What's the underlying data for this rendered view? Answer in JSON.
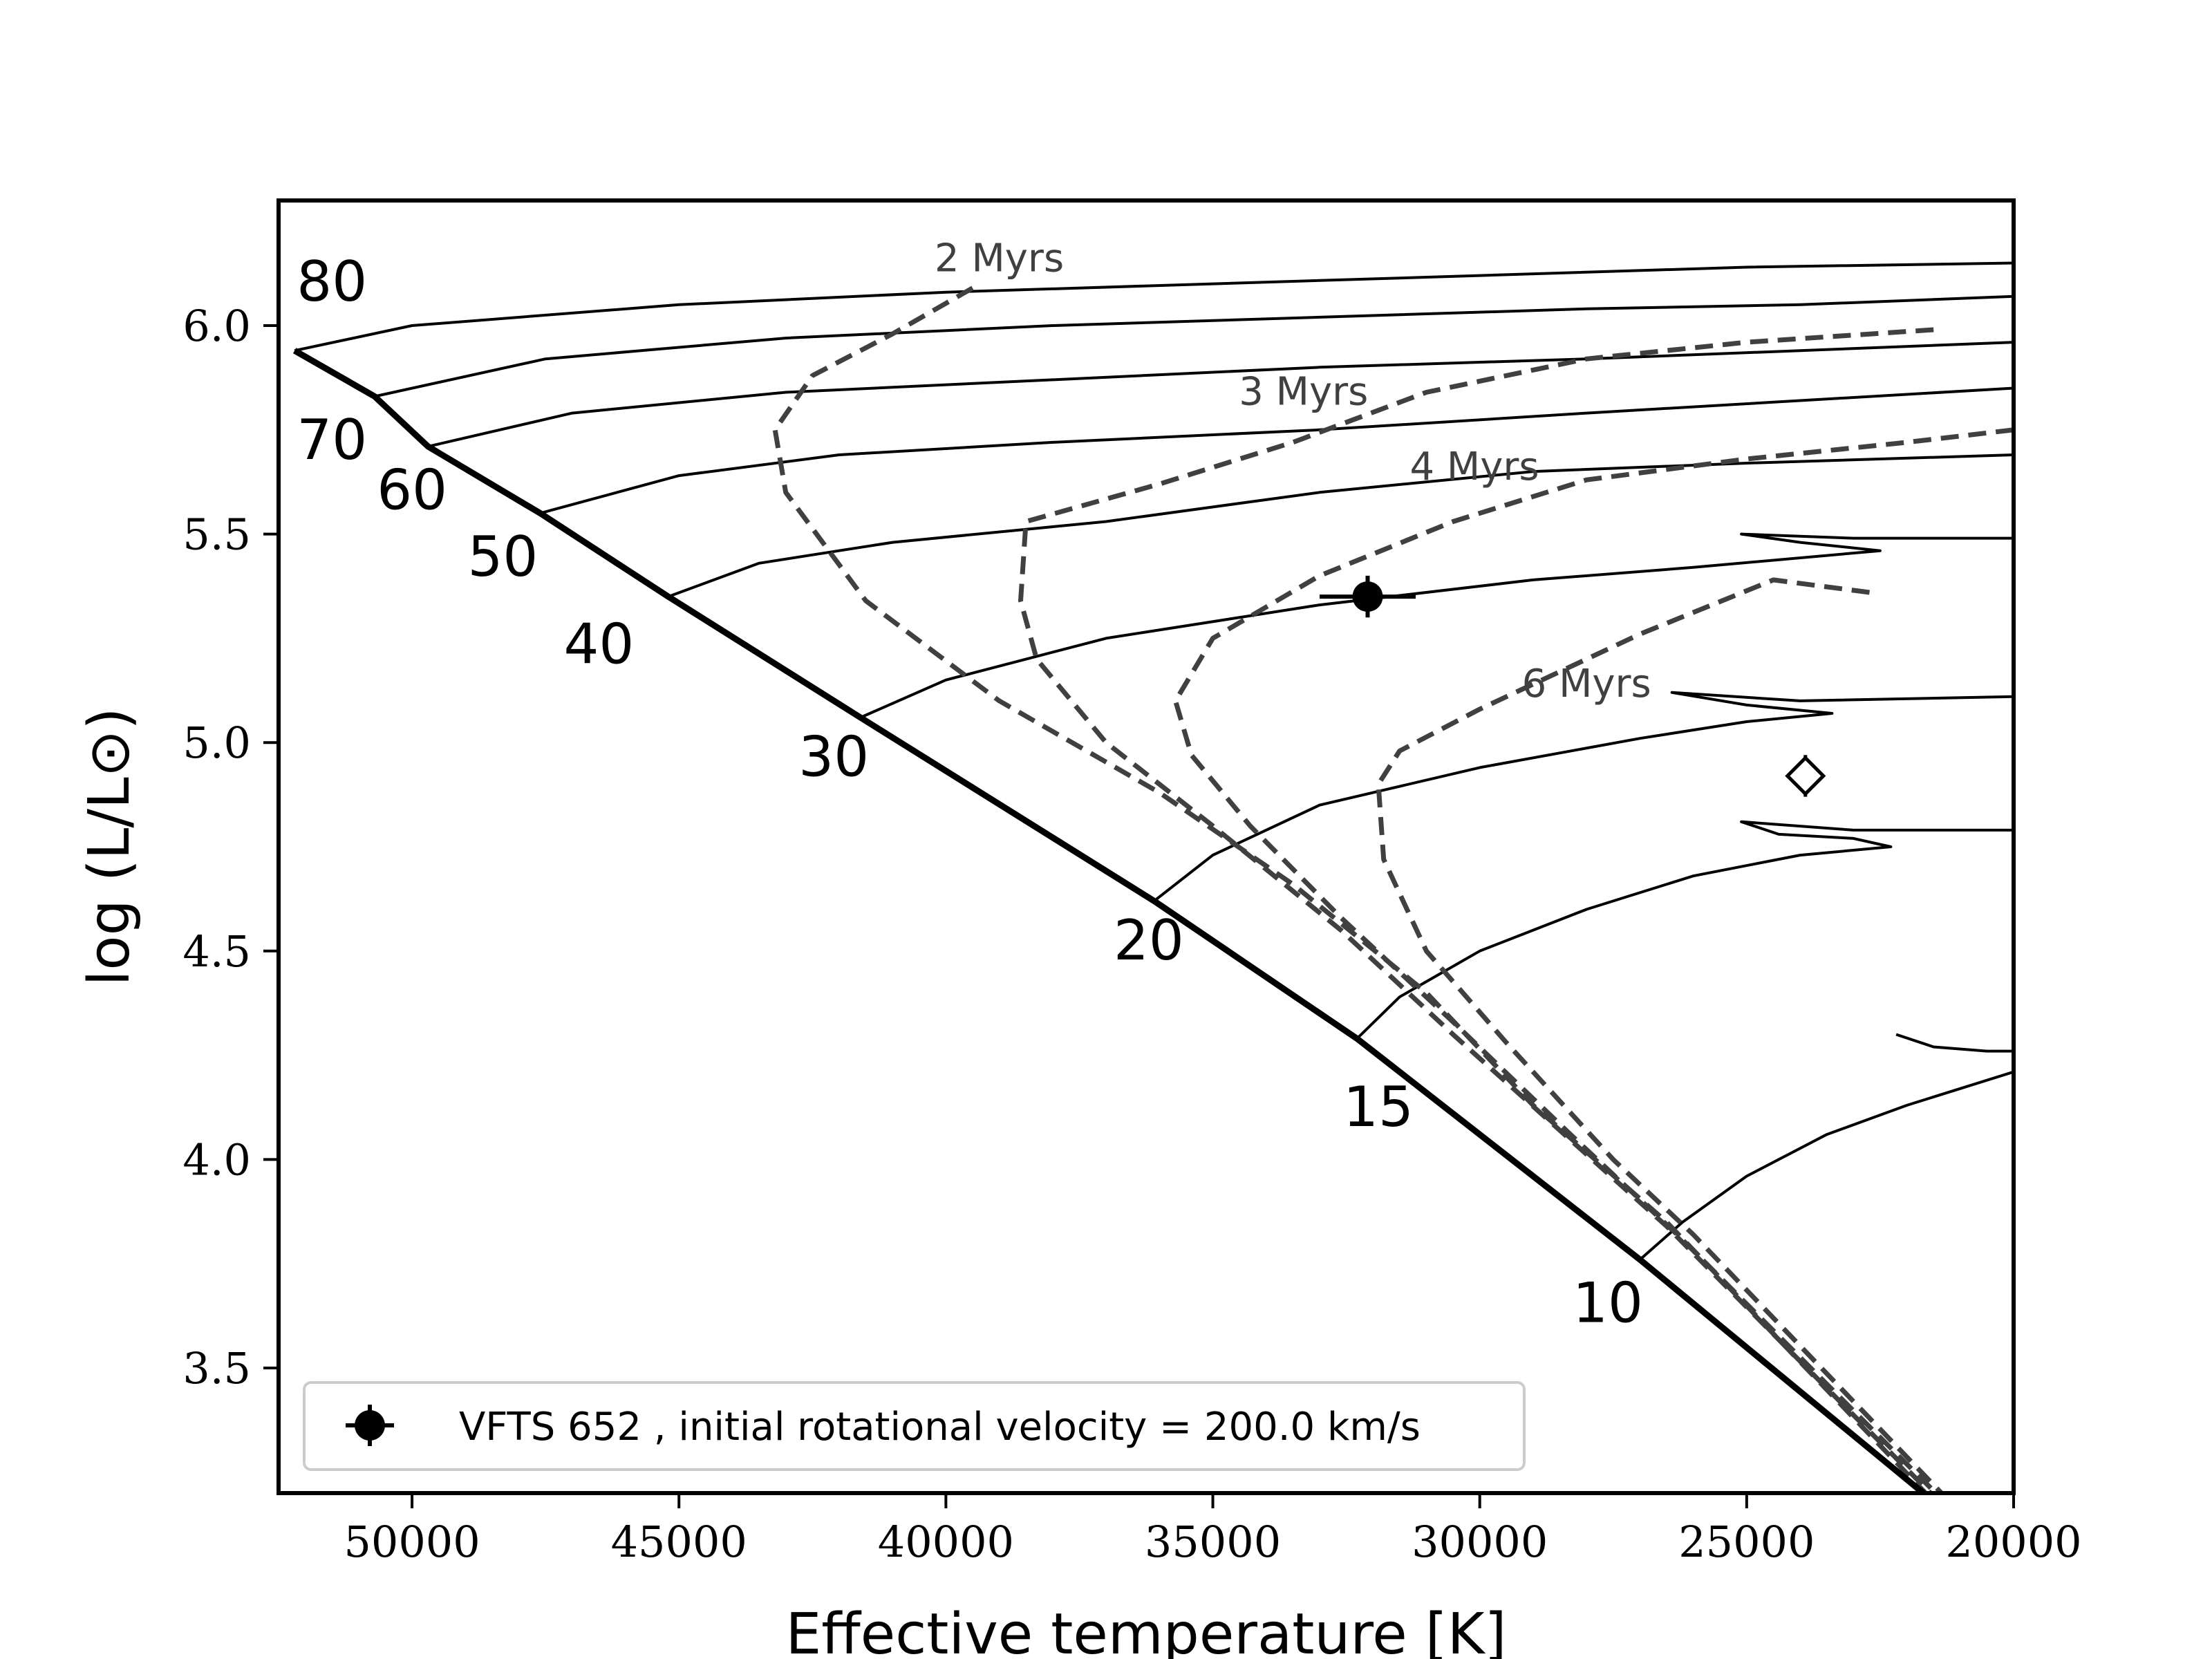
{
  "chart_data": {
    "type": "line",
    "title": "",
    "xlabel": "Effective temperature [K]",
    "ylabel": "log (L/L⊙)",
    "xlim": [
      52500,
      20000
    ],
    "ylim": [
      3.2,
      6.3
    ],
    "x_ticks": [
      {
        "value": 50000,
        "label": "50000"
      },
      {
        "value": 45000,
        "label": "45000"
      },
      {
        "value": 40000,
        "label": "40000"
      },
      {
        "value": 35000,
        "label": "35000"
      },
      {
        "value": 30000,
        "label": "30000"
      },
      {
        "value": 25000,
        "label": "25000"
      },
      {
        "value": 20000,
        "label": "20000"
      }
    ],
    "y_ticks": [
      {
        "value": 3.5,
        "label": "3.5"
      },
      {
        "value": 4.0,
        "label": "4.0"
      },
      {
        "value": 4.5,
        "label": "4.5"
      },
      {
        "value": 5.0,
        "label": "5.0"
      },
      {
        "value": 5.5,
        "label": "5.5"
      },
      {
        "value": 6.0,
        "label": "6.0"
      }
    ],
    "grid": false,
    "zams": [
      [
        52200,
        5.94
      ],
      [
        50700,
        5.83
      ],
      [
        49700,
        5.71
      ],
      [
        47600,
        5.55
      ],
      [
        45200,
        5.35
      ],
      [
        41600,
        5.06
      ],
      [
        36100,
        4.62
      ],
      [
        32300,
        4.29
      ],
      [
        27000,
        3.76
      ],
      [
        21500,
        3.18
      ]
    ],
    "tracks": [
      {
        "mass_label": "80",
        "label_at": [
          51500,
          6.06
        ],
        "points": [
          [
            52200,
            5.94
          ],
          [
            50000,
            6.0
          ],
          [
            45000,
            6.05
          ],
          [
            40000,
            6.08
          ],
          [
            35000,
            6.1
          ],
          [
            30000,
            6.12
          ],
          [
            25000,
            6.14
          ],
          [
            20000,
            6.15
          ]
        ]
      },
      {
        "mass_label": "70",
        "label_at": [
          51500,
          5.68
        ],
        "points": [
          [
            50700,
            5.83
          ],
          [
            47500,
            5.92
          ],
          [
            43000,
            5.97
          ],
          [
            38000,
            6.0
          ],
          [
            33000,
            6.02
          ],
          [
            28000,
            6.04
          ],
          [
            24000,
            6.05
          ],
          [
            20000,
            6.07
          ]
        ]
      },
      {
        "mass_label": "60",
        "label_at": [
          50000,
          5.56
        ],
        "points": [
          [
            49700,
            5.71
          ],
          [
            47000,
            5.79
          ],
          [
            43000,
            5.84
          ],
          [
            38000,
            5.87
          ],
          [
            33000,
            5.9
          ],
          [
            28000,
            5.92
          ],
          [
            24000,
            5.94
          ],
          [
            20000,
            5.96
          ]
        ]
      },
      {
        "mass_label": "50",
        "label_at": [
          48300,
          5.4
        ],
        "points": [
          [
            47600,
            5.55
          ],
          [
            45000,
            5.64
          ],
          [
            42000,
            5.69
          ],
          [
            38000,
            5.72
          ],
          [
            33000,
            5.75
          ],
          [
            28000,
            5.79
          ],
          [
            24000,
            5.82
          ],
          [
            20000,
            5.85
          ]
        ]
      },
      {
        "mass_label": "40",
        "label_at": [
          46500,
          5.19
        ],
        "points": [
          [
            45200,
            5.35
          ],
          [
            43500,
            5.43
          ],
          [
            41000,
            5.48
          ],
          [
            37000,
            5.53
          ],
          [
            33000,
            5.6
          ],
          [
            29000,
            5.65
          ],
          [
            25000,
            5.67
          ],
          [
            20000,
            5.69
          ]
        ]
      },
      {
        "mass_label": "30",
        "label_at": [
          42100,
          4.92
        ],
        "points": [
          [
            41600,
            5.06
          ],
          [
            40000,
            5.15
          ],
          [
            37000,
            5.25
          ],
          [
            33000,
            5.33
          ],
          [
            29000,
            5.39
          ],
          [
            26000,
            5.42
          ],
          [
            22500,
            5.46
          ],
          [
            24000,
            5.48
          ],
          [
            25100,
            5.5
          ],
          [
            23000,
            5.49
          ],
          [
            20000,
            5.49
          ]
        ]
      },
      {
        "mass_label": "20",
        "label_at": [
          36200,
          4.48
        ],
        "points": [
          [
            36100,
            4.62
          ],
          [
            35000,
            4.73
          ],
          [
            33000,
            4.85
          ],
          [
            30000,
            4.94
          ],
          [
            27000,
            5.01
          ],
          [
            25000,
            5.05
          ],
          [
            23400,
            5.07
          ],
          [
            25000,
            5.09
          ],
          [
            26400,
            5.12
          ],
          [
            24000,
            5.1
          ],
          [
            20000,
            5.11
          ]
        ]
      },
      {
        "mass_label": "15",
        "label_at": [
          31900,
          4.08
        ],
        "points": [
          [
            32300,
            4.29
          ],
          [
            31500,
            4.39
          ],
          [
            30000,
            4.5
          ],
          [
            28000,
            4.6
          ],
          [
            26000,
            4.68
          ],
          [
            24000,
            4.73
          ],
          [
            22300,
            4.75
          ],
          [
            23000,
            4.77
          ],
          [
            24400,
            4.78
          ],
          [
            25100,
            4.81
          ],
          [
            23000,
            4.79
          ],
          [
            20000,
            4.79
          ]
        ]
      },
      {
        "mass_label": "10",
        "label_at": [
          27600,
          3.61
        ],
        "points": [
          [
            27000,
            3.76
          ],
          [
            26200,
            3.85
          ],
          [
            25000,
            3.96
          ],
          [
            23500,
            4.06
          ],
          [
            22000,
            4.13
          ],
          [
            20000,
            4.21
          ]
        ]
      }
    ],
    "track_hook_10": {
      "points": [
        [
          22200,
          4.3
        ],
        [
          21500,
          4.27
        ],
        [
          20500,
          4.26
        ],
        [
          20000,
          4.26
        ]
      ]
    },
    "isochrones": [
      {
        "label": "2 Myrs",
        "label_at": [
          39000,
          6.13
        ],
        "points": [
          [
            39500,
            6.09
          ],
          [
            41000,
            5.98
          ],
          [
            42500,
            5.88
          ],
          [
            43200,
            5.75
          ],
          [
            43000,
            5.6
          ],
          [
            41500,
            5.34
          ],
          [
            39000,
            5.1
          ],
          [
            36000,
            4.88
          ],
          [
            33500,
            4.66
          ],
          [
            31000,
            4.4
          ],
          [
            29000,
            4.13
          ],
          [
            26500,
            3.85
          ],
          [
            21500,
            3.18
          ]
        ]
      },
      {
        "label": "3 Myrs",
        "label_at": [
          33300,
          5.81
        ],
        "points": [
          [
            21500,
            5.99
          ],
          [
            25000,
            5.96
          ],
          [
            28000,
            5.92
          ],
          [
            31000,
            5.84
          ],
          [
            33500,
            5.72
          ],
          [
            36000,
            5.62
          ],
          [
            38500,
            5.53
          ],
          [
            38600,
            5.34
          ],
          [
            38300,
            5.2
          ],
          [
            37000,
            5.0
          ],
          [
            35000,
            4.8
          ],
          [
            32600,
            4.55
          ],
          [
            30500,
            4.3
          ],
          [
            28500,
            4.07
          ],
          [
            26500,
            3.84
          ],
          [
            21400,
            3.18
          ]
        ]
      },
      {
        "label": "4 Myrs",
        "label_at": [
          30100,
          5.63
        ],
        "points": [
          [
            20000,
            5.75
          ],
          [
            22000,
            5.72
          ],
          [
            25000,
            5.68
          ],
          [
            28000,
            5.63
          ],
          [
            30500,
            5.53
          ],
          [
            33000,
            5.4
          ],
          [
            35000,
            5.25
          ],
          [
            35700,
            5.1
          ],
          [
            35400,
            4.97
          ],
          [
            34300,
            4.8
          ],
          [
            32600,
            4.58
          ],
          [
            30500,
            4.33
          ],
          [
            28300,
            4.06
          ],
          [
            26300,
            3.82
          ],
          [
            21300,
            3.18
          ]
        ]
      },
      {
        "label": "6 Myrs",
        "label_at": [
          28000,
          5.11
        ],
        "points": [
          [
            22700,
            5.36
          ],
          [
            24500,
            5.39
          ],
          [
            27000,
            5.26
          ],
          [
            30000,
            5.08
          ],
          [
            31500,
            4.98
          ],
          [
            31900,
            4.9
          ],
          [
            31800,
            4.72
          ],
          [
            31000,
            4.5
          ],
          [
            29500,
            4.28
          ],
          [
            27500,
            4.0
          ],
          [
            26000,
            3.82
          ],
          [
            21200,
            3.18
          ]
        ]
      }
    ],
    "observed_star": {
      "name": "VFTS 652",
      "teff": 32100,
      "logL": 5.35,
      "teff_err": 900,
      "logL_err": 0.05
    },
    "comparison_star": {
      "teff": 23900,
      "logL": 4.92,
      "logL_err": 0.05
    },
    "legend": {
      "placement": "lower-left",
      "entry": "VFTS 652 , initial rotational velocity = 200.0 km/s"
    }
  }
}
